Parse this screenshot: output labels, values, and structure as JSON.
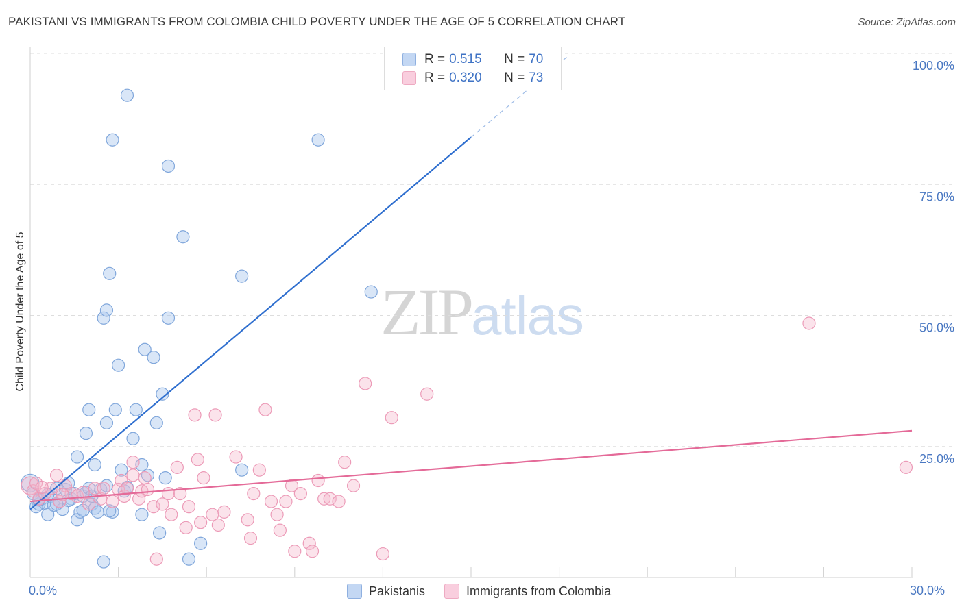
{
  "title": "PAKISTANI VS IMMIGRANTS FROM COLOMBIA CHILD POVERTY UNDER THE AGE OF 5 CORRELATION CHART",
  "source": "Source: ZipAtlas.com",
  "watermark": {
    "zip": "ZIP",
    "atlas": "atlas"
  },
  "colors": {
    "blue": "#4a78c2",
    "blue_fill": "#aac7ee",
    "blue_line": "#2f6fcf",
    "pink_fill": "#f5b9cd",
    "pink_line": "#e46a98",
    "grid": "#dddddd"
  },
  "legend": {
    "rows": [
      {
        "r_label": "R =",
        "r_value": "0.515",
        "n_label": "N =",
        "n_value": "70"
      },
      {
        "r_label": "R =",
        "r_value": "0.320",
        "n_label": "N =",
        "n_value": "73"
      }
    ]
  },
  "chart_data": {
    "type": "scatter",
    "title": "PAKISTANI VS IMMIGRANTS FROM COLOMBIA CHILD POVERTY UNDER THE AGE OF 5 CORRELATION CHART",
    "xlabel": "",
    "ylabel": "Child Poverty Under the Age of 5",
    "xlim": [
      0,
      30
    ],
    "ylim": [
      0,
      100
    ],
    "x_tick_labels": [
      "0.0%",
      "30.0%"
    ],
    "y_ticks": [
      25,
      50,
      75,
      100
    ],
    "y_tick_labels": [
      "25.0%",
      "50.0%",
      "75.0%",
      "100.0%"
    ],
    "legend_position": "top-center",
    "series": [
      {
        "name": "Pakistanis",
        "R": 0.515,
        "N": 70,
        "trend": {
          "x0": 0.0,
          "y0": 13.0,
          "x1": 15.0,
          "y1": 84.0,
          "dash_to_x": 18.3,
          "dash_to_y": 99.5
        },
        "points": [
          [
            0.0,
            18.0
          ],
          [
            0.1,
            16.0
          ],
          [
            0.2,
            13.5
          ],
          [
            0.3,
            14.0
          ],
          [
            0.4,
            15.0
          ],
          [
            0.5,
            14.2
          ],
          [
            0.6,
            12.0
          ],
          [
            0.7,
            15.5
          ],
          [
            0.8,
            13.8
          ],
          [
            0.9,
            17.0
          ],
          [
            1.0,
            14.5
          ],
          [
            1.1,
            13.0
          ],
          [
            1.2,
            16.8
          ],
          [
            1.3,
            18.0
          ],
          [
            1.4,
            15.0
          ],
          [
            1.5,
            16.0
          ],
          [
            1.6,
            11.0
          ],
          [
            1.6,
            23.0
          ],
          [
            1.7,
            12.5
          ],
          [
            1.8,
            15.5
          ],
          [
            1.9,
            16.2
          ],
          [
            2.0,
            17.0
          ],
          [
            2.1,
            14.0
          ],
          [
            2.2,
            13.2
          ],
          [
            1.9,
            27.5
          ],
          [
            2.0,
            32.0
          ],
          [
            2.1,
            15.5
          ],
          [
            2.2,
            21.5
          ],
          [
            2.3,
            12.5
          ],
          [
            2.4,
            16.8
          ],
          [
            2.5,
            3.0
          ],
          [
            2.6,
            17.5
          ],
          [
            2.5,
            49.5
          ],
          [
            2.6,
            51.0
          ],
          [
            2.6,
            29.5
          ],
          [
            2.7,
            58.0
          ],
          [
            2.8,
            12.5
          ],
          [
            2.9,
            32.0
          ],
          [
            2.8,
            83.5
          ],
          [
            3.0,
            40.5
          ],
          [
            3.1,
            20.5
          ],
          [
            3.2,
            16.5
          ],
          [
            3.3,
            92.0
          ],
          [
            3.5,
            26.5
          ],
          [
            3.6,
            32.0
          ],
          [
            3.8,
            12.0
          ],
          [
            3.8,
            21.5
          ],
          [
            3.9,
            43.5
          ],
          [
            4.0,
            19.5
          ],
          [
            4.2,
            42.0
          ],
          [
            4.3,
            29.5
          ],
          [
            4.4,
            8.5
          ],
          [
            4.5,
            35.0
          ],
          [
            4.6,
            19.0
          ],
          [
            4.7,
            49.5
          ],
          [
            4.7,
            78.5
          ],
          [
            5.4,
            3.5
          ],
          [
            5.2,
            65.0
          ],
          [
            5.8,
            6.5
          ],
          [
            7.2,
            20.5
          ],
          [
            7.2,
            57.5
          ],
          [
            9.8,
            83.5
          ],
          [
            11.6,
            54.5
          ],
          [
            0.3,
            14.8
          ],
          [
            0.6,
            15.8
          ],
          [
            0.9,
            14.0
          ],
          [
            1.3,
            14.7
          ],
          [
            2.7,
            12.7
          ],
          [
            3.3,
            17.2
          ],
          [
            1.8,
            12.8
          ]
        ]
      },
      {
        "name": "Immigrants from Colombia",
        "R": 0.32,
        "N": 73,
        "trend": {
          "x0": 0.0,
          "y0": 14.5,
          "x1": 30.0,
          "y1": 28.0
        },
        "points": [
          [
            0.0,
            17.5
          ],
          [
            0.1,
            16.5
          ],
          [
            0.2,
            18.0
          ],
          [
            0.3,
            15.0
          ],
          [
            0.5,
            16.0
          ],
          [
            0.7,
            17.0
          ],
          [
            0.9,
            19.5
          ],
          [
            1.0,
            14.5
          ],
          [
            1.2,
            17.5
          ],
          [
            1.4,
            16.0
          ],
          [
            1.6,
            15.5
          ],
          [
            1.8,
            16.2
          ],
          [
            2.0,
            14.0
          ],
          [
            2.2,
            17.0
          ],
          [
            2.4,
            15.0
          ],
          [
            2.5,
            17.0
          ],
          [
            2.8,
            14.5
          ],
          [
            3.0,
            16.8
          ],
          [
            3.1,
            18.5
          ],
          [
            3.2,
            15.5
          ],
          [
            3.3,
            17.0
          ],
          [
            3.5,
            19.5
          ],
          [
            3.5,
            22.0
          ],
          [
            3.7,
            15.0
          ],
          [
            3.8,
            16.5
          ],
          [
            3.9,
            19.0
          ],
          [
            4.0,
            16.8
          ],
          [
            4.2,
            13.5
          ],
          [
            4.3,
            3.5
          ],
          [
            4.5,
            14.0
          ],
          [
            4.7,
            16.0
          ],
          [
            4.8,
            12.0
          ],
          [
            5.0,
            21.0
          ],
          [
            5.1,
            16.0
          ],
          [
            5.3,
            9.5
          ],
          [
            5.4,
            13.5
          ],
          [
            5.6,
            31.0
          ],
          [
            5.7,
            22.5
          ],
          [
            5.8,
            10.5
          ],
          [
            5.9,
            19.0
          ],
          [
            6.2,
            12.0
          ],
          [
            6.3,
            31.0
          ],
          [
            6.4,
            10.0
          ],
          [
            6.6,
            12.5
          ],
          [
            7.0,
            23.0
          ],
          [
            7.4,
            11.0
          ],
          [
            7.5,
            7.5
          ],
          [
            7.6,
            16.0
          ],
          [
            7.8,
            20.5
          ],
          [
            8.0,
            32.0
          ],
          [
            8.2,
            14.5
          ],
          [
            8.4,
            12.0
          ],
          [
            8.5,
            9.0
          ],
          [
            8.7,
            14.5
          ],
          [
            8.9,
            17.5
          ],
          [
            9.0,
            5.0
          ],
          [
            9.2,
            16.0
          ],
          [
            9.5,
            6.5
          ],
          [
            9.6,
            5.0
          ],
          [
            9.8,
            18.5
          ],
          [
            10.0,
            15.0
          ],
          [
            10.2,
            15.0
          ],
          [
            10.5,
            14.5
          ],
          [
            10.7,
            22.0
          ],
          [
            11.0,
            17.5
          ],
          [
            11.4,
            37.0
          ],
          [
            12.0,
            4.5
          ],
          [
            12.3,
            30.5
          ],
          [
            13.5,
            35.0
          ],
          [
            26.5,
            48.5
          ],
          [
            29.8,
            21.0
          ],
          [
            0.4,
            17.2
          ],
          [
            1.1,
            15.8
          ]
        ]
      }
    ]
  },
  "bottom_legend": {
    "items": [
      "Pakistanis",
      "Immigrants from Colombia"
    ]
  }
}
